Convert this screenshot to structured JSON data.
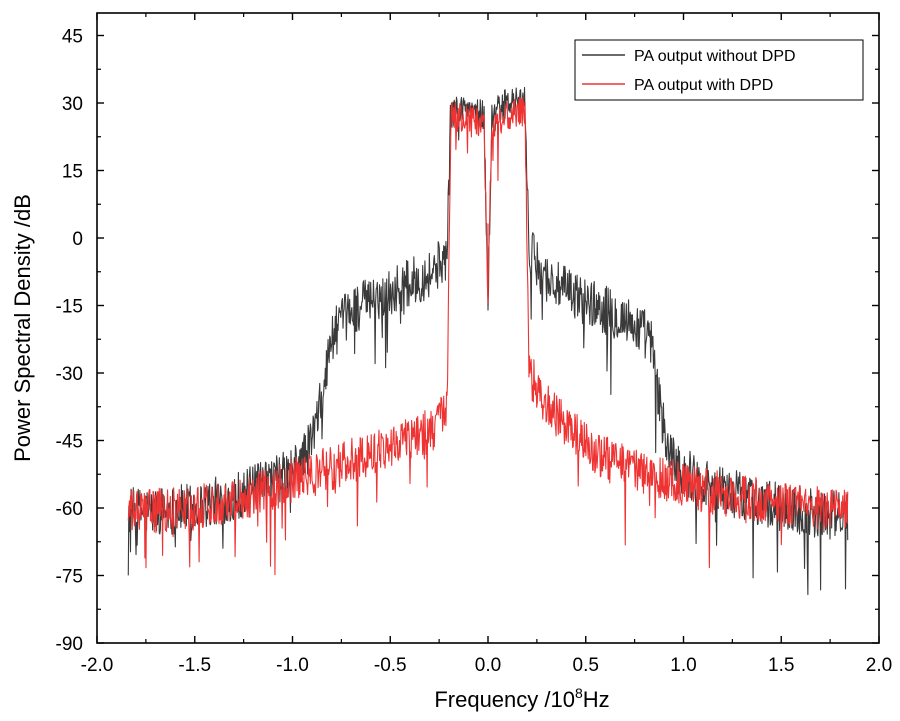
{
  "chart_data": {
    "type": "line",
    "title": "",
    "xlabel": "Frequency /10",
    "xlabel_sup": "8",
    "xlabel_unit": "Hz",
    "ylabel": "Power Spectral Density /dB",
    "xlim": [
      -2.0,
      2.0
    ],
    "ylim": [
      -90,
      50
    ],
    "xticks": [
      -2.0,
      -1.5,
      -1.0,
      -0.5,
      0.0,
      0.5,
      1.0,
      1.5,
      2.0
    ],
    "xtick_labels": [
      "-2.0",
      "-1.5",
      "-1.0",
      "-0.5",
      "0.0",
      "0.5",
      "1.0",
      "1.5",
      "2.0"
    ],
    "yticks": [
      -90,
      -75,
      -60,
      -45,
      -30,
      -15,
      0,
      15,
      30,
      45
    ],
    "ytick_labels": [
      "-90",
      "-75",
      "-60",
      "-45",
      "-30",
      "-15",
      "0",
      "15",
      "30",
      "45"
    ],
    "legend_position": "top-right",
    "x_range": [
      -1.84,
      1.84
    ],
    "series": [
      {
        "name": "PA output without DPD",
        "color": "#3a3a3a",
        "envelope": [
          [
            -1.84,
            -61
          ],
          [
            -1.5,
            -60
          ],
          [
            -1.2,
            -56
          ],
          [
            -1.0,
            -52
          ],
          [
            -0.92,
            -47
          ],
          [
            -0.87,
            -40
          ],
          [
            -0.84,
            -33
          ],
          [
            -0.8,
            -22
          ],
          [
            -0.7,
            -16
          ],
          [
            -0.6,
            -14
          ],
          [
            -0.5,
            -12
          ],
          [
            -0.4,
            -10
          ],
          [
            -0.3,
            -8
          ],
          [
            -0.21,
            -4
          ],
          [
            -0.19,
            28
          ],
          [
            -0.1,
            29
          ],
          [
            -0.02,
            27
          ],
          [
            0.0,
            -12
          ],
          [
            0.02,
            27
          ],
          [
            0.1,
            30
          ],
          [
            0.19,
            30
          ],
          [
            0.21,
            -3
          ],
          [
            0.3,
            -9
          ],
          [
            0.4,
            -12
          ],
          [
            0.5,
            -14
          ],
          [
            0.6,
            -16
          ],
          [
            0.7,
            -18
          ],
          [
            0.8,
            -21
          ],
          [
            0.84,
            -24
          ],
          [
            0.87,
            -35
          ],
          [
            0.92,
            -47
          ],
          [
            1.0,
            -52
          ],
          [
            1.2,
            -56
          ],
          [
            1.5,
            -60
          ],
          [
            1.84,
            -62
          ]
        ],
        "noise_amplitude": 5.5
      },
      {
        "name": "PA output with DPD",
        "color": "#ee3333",
        "envelope": [
          [
            -1.84,
            -61
          ],
          [
            -1.5,
            -60
          ],
          [
            -1.2,
            -57
          ],
          [
            -1.0,
            -54
          ],
          [
            -0.8,
            -51
          ],
          [
            -0.6,
            -48
          ],
          [
            -0.4,
            -44
          ],
          [
            -0.3,
            -43
          ],
          [
            -0.21,
            -39
          ],
          [
            -0.19,
            27
          ],
          [
            -0.1,
            26
          ],
          [
            -0.02,
            25
          ],
          [
            0.0,
            -12
          ],
          [
            0.02,
            25
          ],
          [
            0.1,
            27
          ],
          [
            0.19,
            28
          ],
          [
            0.21,
            -30
          ],
          [
            0.3,
            -37
          ],
          [
            0.4,
            -42
          ],
          [
            0.5,
            -46
          ],
          [
            0.6,
            -49
          ],
          [
            0.7,
            -51
          ],
          [
            0.8,
            -52
          ],
          [
            1.0,
            -55
          ],
          [
            1.2,
            -57
          ],
          [
            1.5,
            -59
          ],
          [
            1.84,
            -61
          ]
        ],
        "noise_amplitude": 5
      }
    ]
  }
}
